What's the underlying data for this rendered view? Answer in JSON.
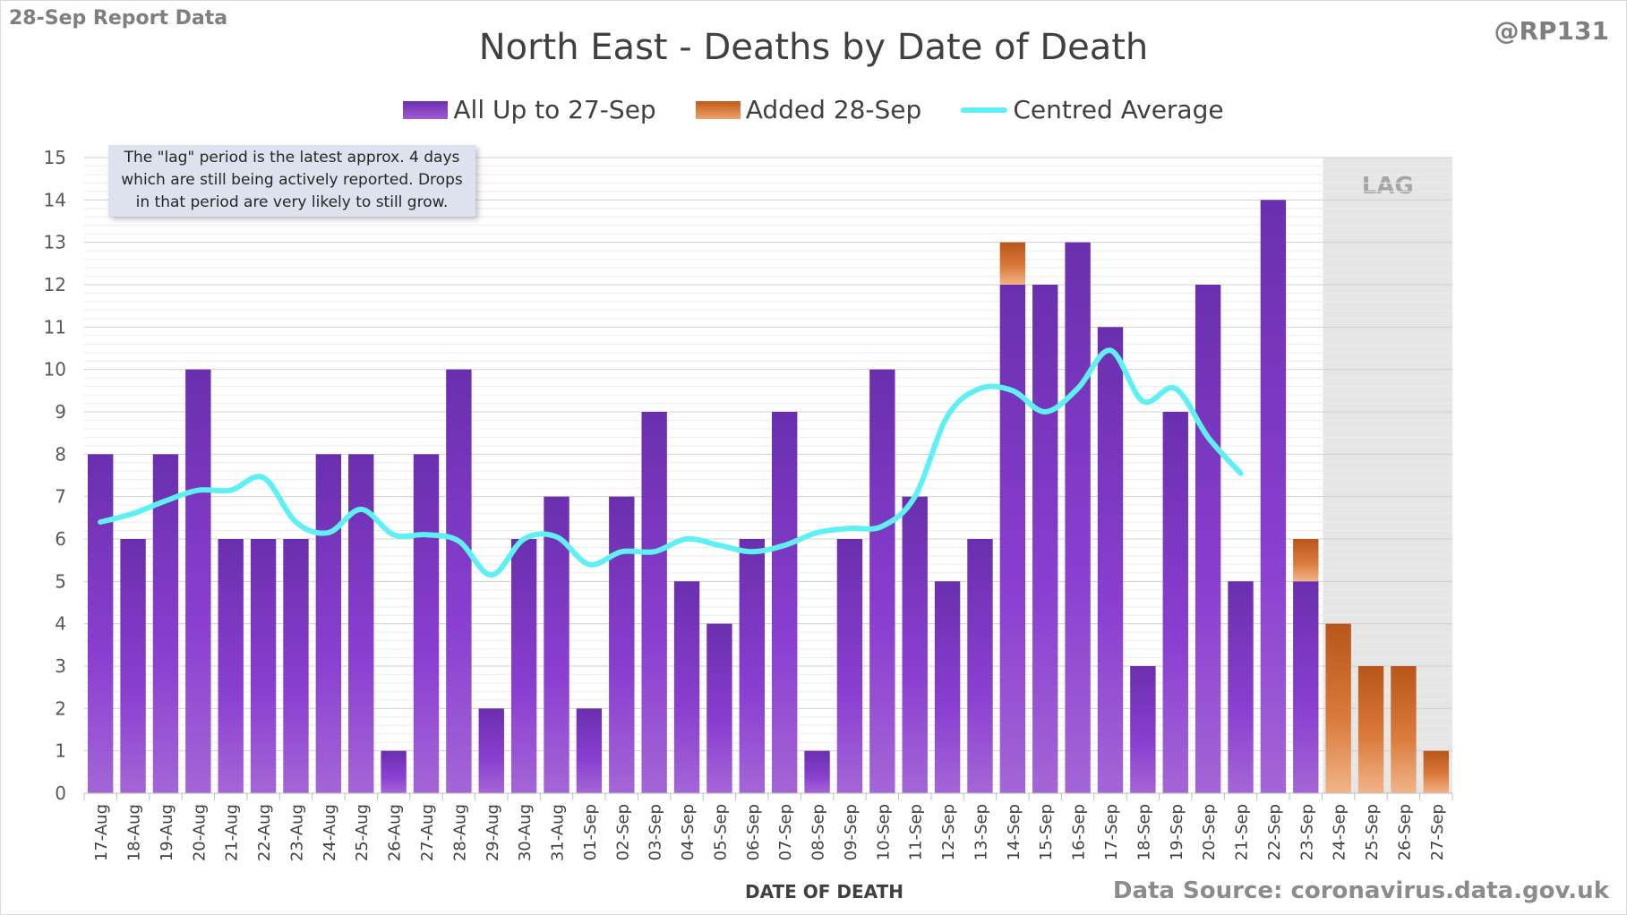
{
  "header": {
    "report_label": "28-Sep Report Data",
    "title": "North East - Deaths by Date of Death",
    "handle": "@RP131"
  },
  "legend": {
    "items": [
      {
        "label": "All Up to 27-Sep",
        "color": "#7a36c0"
      },
      {
        "label": "Added 28-Sep",
        "color": "#d9793a"
      },
      {
        "label": "Centred Average",
        "color": "#5ef0f2"
      }
    ]
  },
  "annotation": {
    "lines": [
      "The \"lag\" period is the latest approx. 4 days",
      "which are still being actively reported. Drops",
      "in that period are very likely to still grow."
    ],
    "lag_label": "LAG"
  },
  "footer": {
    "source": "Data Source: coronavirus.data.gov.uk",
    "x_title": "DATE OF DEATH"
  },
  "chart_data": {
    "type": "bar",
    "stacked": true,
    "categories": [
      "17-Aug",
      "18-Aug",
      "19-Aug",
      "20-Aug",
      "21-Aug",
      "22-Aug",
      "23-Aug",
      "24-Aug",
      "25-Aug",
      "26-Aug",
      "27-Aug",
      "28-Aug",
      "29-Aug",
      "30-Aug",
      "31-Aug",
      "01-Sep",
      "02-Sep",
      "03-Sep",
      "04-Sep",
      "05-Sep",
      "06-Sep",
      "07-Sep",
      "08-Sep",
      "09-Sep",
      "10-Sep",
      "11-Sep",
      "12-Sep",
      "13-Sep",
      "14-Sep",
      "15-Sep",
      "16-Sep",
      "17-Sep",
      "18-Sep",
      "19-Sep",
      "20-Sep",
      "21-Sep",
      "22-Sep",
      "23-Sep",
      "24-Sep",
      "25-Sep",
      "26-Sep",
      "27-Sep"
    ],
    "series": [
      {
        "name": "All Up to 27-Sep",
        "color": "#7a36c0",
        "values": [
          8,
          6,
          8,
          10,
          6,
          6,
          6,
          8,
          8,
          1,
          8,
          10,
          2,
          6,
          7,
          2,
          7,
          9,
          5,
          4,
          6,
          9,
          1,
          6,
          10,
          7,
          5,
          6,
          12,
          12,
          13,
          11,
          3,
          9,
          12,
          5,
          14,
          5,
          0,
          0,
          0,
          0
        ]
      },
      {
        "name": "Added 28-Sep",
        "color": "#d9793a",
        "values": [
          0,
          0,
          0,
          0,
          0,
          0,
          0,
          0,
          0,
          0,
          0,
          0,
          0,
          0,
          0,
          0,
          0,
          0,
          0,
          0,
          0,
          0,
          0,
          0,
          0,
          0,
          0,
          0,
          1,
          0,
          0,
          0,
          0,
          0,
          0,
          0,
          0,
          1,
          4,
          3,
          3,
          1
        ]
      },
      {
        "name": "Centred Average",
        "type": "line",
        "color": "#5ef0f2",
        "values": [
          6.4,
          6.6,
          6.9,
          7.15,
          7.15,
          7.45,
          6.4,
          6.15,
          6.7,
          6.1,
          6.1,
          5.95,
          5.15,
          6.0,
          6.05,
          5.4,
          5.7,
          5.7,
          6.0,
          5.85,
          5.7,
          5.85,
          6.15,
          6.25,
          6.3,
          7.0,
          8.9,
          9.55,
          9.5,
          9.0,
          9.55,
          10.45,
          9.25,
          9.55,
          8.4,
          7.55,
          null,
          null,
          null,
          null,
          null,
          null
        ]
      }
    ],
    "xlabel": "DATE OF DEATH",
    "ylim": [
      0,
      15
    ],
    "yticks": [
      0,
      1,
      2,
      3,
      4,
      5,
      6,
      7,
      8,
      9,
      10,
      11,
      12,
      13,
      14,
      15
    ],
    "lag_period": [
      "24-Sep",
      "27-Sep"
    ],
    "grid": true,
    "legend_position": "top"
  }
}
